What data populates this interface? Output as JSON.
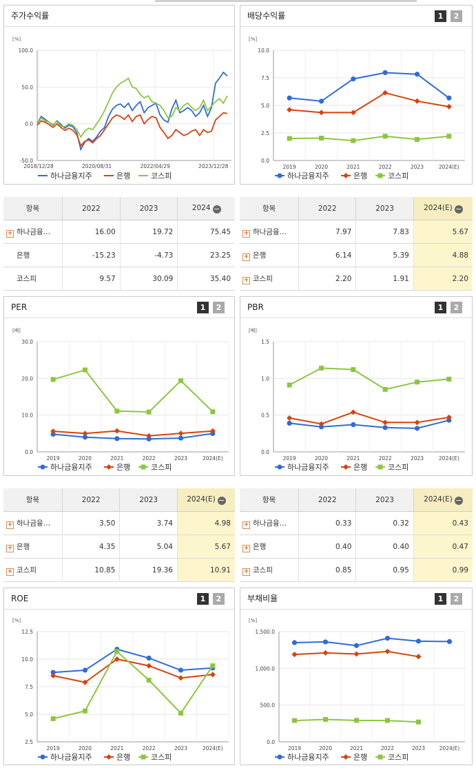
{
  "colors": {
    "hana": "#2e6bd9",
    "bank": "#d9410b",
    "kospi": "#8cc63f"
  },
  "panels": {
    "stock": {
      "title": "주가수익률"
    },
    "div": {
      "title": "배당수익률",
      "pages": [
        "1",
        "2"
      ]
    },
    "per": {
      "title": "PER",
      "pages": [
        "1",
        "2"
      ]
    },
    "pbr": {
      "title": "PBR",
      "pages": [
        "1",
        "2"
      ]
    },
    "roe": {
      "title": "ROE",
      "pages": [
        "1",
        "2"
      ]
    },
    "debt": {
      "title": "부채비율",
      "pages": [
        "1",
        "2"
      ]
    }
  },
  "legend": {
    "hana": "하나금융지주",
    "bank": "은행",
    "kospi": "코스피"
  },
  "tables": {
    "stock": {
      "headers": [
        "항목",
        "2022",
        "2023",
        "2024"
      ],
      "rows": [
        {
          "name": "하나금융…",
          "expand": true,
          "v": [
            "16.00",
            "19.72",
            "75.45"
          ]
        },
        {
          "name": "은행",
          "expand": false,
          "v": [
            "-15.23",
            "-4.73",
            "23.25"
          ]
        },
        {
          "name": "코스피",
          "expand": false,
          "v": [
            "9.57",
            "30.09",
            "35.40"
          ]
        }
      ]
    },
    "div": {
      "headers": [
        "항목",
        "2022",
        "2023",
        "2024(E)"
      ],
      "rows": [
        {
          "name": "하나금융…",
          "expand": true,
          "v": [
            "7.97",
            "7.83",
            "5.67"
          ]
        },
        {
          "name": "은행",
          "expand": true,
          "v": [
            "6.14",
            "5.39",
            "4.88"
          ]
        },
        {
          "name": "코스피",
          "expand": true,
          "v": [
            "2.20",
            "1.91",
            "2.20"
          ]
        }
      ]
    },
    "per": {
      "headers": [
        "항목",
        "2022",
        "2023",
        "2024(E)"
      ],
      "rows": [
        {
          "name": "하나금융…",
          "expand": true,
          "v": [
            "3.50",
            "3.74",
            "4.98"
          ]
        },
        {
          "name": "은행",
          "expand": true,
          "v": [
            "4.35",
            "5.04",
            "5.67"
          ]
        },
        {
          "name": "코스피",
          "expand": true,
          "v": [
            "10.85",
            "19.36",
            "10.91"
          ]
        }
      ]
    },
    "pbr": {
      "headers": [
        "항목",
        "2022",
        "2023",
        "2024(E)"
      ],
      "rows": [
        {
          "name": "하나금융…",
          "expand": true,
          "v": [
            "0.33",
            "0.32",
            "0.43"
          ]
        },
        {
          "name": "은행",
          "expand": true,
          "v": [
            "0.40",
            "0.40",
            "0.47"
          ]
        },
        {
          "name": "코스피",
          "expand": true,
          "v": [
            "0.85",
            "0.95",
            "0.99"
          ]
        }
      ]
    }
  },
  "chart_data": [
    {
      "id": "stock",
      "type": "line",
      "ylabel": "[%]",
      "ylim": [
        -50,
        100
      ],
      "yticks": [
        "-50.0",
        "0.0",
        "50.0",
        "100.0"
      ],
      "xticks": [
        "2018/12/28",
        "2020/08/31",
        "2022/04/29",
        "2023/12/28"
      ],
      "series": [
        {
          "name": "하나금융지주",
          "key": "hana",
          "values": [
            0,
            10,
            6,
            2,
            -2,
            4,
            -1,
            -6,
            -2,
            -4,
            -12,
            -35,
            -25,
            -20,
            -24,
            -18,
            -10,
            -5,
            10,
            20,
            25,
            27,
            22,
            28,
            18,
            25,
            30,
            15,
            22,
            25,
            28,
            12,
            5,
            2,
            20,
            32,
            15,
            18,
            22,
            18,
            10,
            15,
            25,
            10,
            22,
            55,
            62,
            70,
            65
          ]
        },
        {
          "name": "은행",
          "key": "bank",
          "values": [
            -2,
            4,
            2,
            -1,
            -5,
            0,
            -5,
            -9,
            -6,
            -9,
            -15,
            -30,
            -24,
            -22,
            -26,
            -20,
            -16,
            -8,
            0,
            8,
            12,
            10,
            6,
            12,
            3,
            10,
            12,
            0,
            6,
            10,
            8,
            -5,
            -12,
            -20,
            -16,
            -8,
            -12,
            -16,
            -14,
            -10,
            -8,
            -16,
            -8,
            -12,
            -10,
            5,
            10,
            15,
            14
          ]
        },
        {
          "name": "코스피",
          "key": "kospi",
          "values": [
            0,
            8,
            4,
            2,
            -1,
            3,
            -3,
            -4,
            0,
            -2,
            -8,
            -18,
            -10,
            -6,
            -8,
            0,
            8,
            18,
            30,
            42,
            50,
            55,
            58,
            62,
            50,
            48,
            40,
            35,
            38,
            30,
            28,
            25,
            18,
            8,
            10,
            22,
            18,
            25,
            28,
            22,
            18,
            22,
            32,
            18,
            24,
            30,
            34,
            28,
            38
          ]
        }
      ]
    },
    {
      "id": "div",
      "type": "line",
      "ylabel": "[%]",
      "ylim": [
        0,
        10
      ],
      "yticks": [
        "0.0",
        "2.5",
        "5.0",
        "7.5",
        "10.0"
      ],
      "categories": [
        "2019",
        "2020",
        "2021",
        "2022",
        "2023",
        "2024(E)"
      ],
      "series": [
        {
          "name": "하나금융지주",
          "key": "hana",
          "values": [
            5.67,
            5.38,
            7.4,
            7.97,
            7.83,
            5.67
          ]
        },
        {
          "name": "은행",
          "key": "bank",
          "values": [
            4.6,
            4.35,
            4.35,
            6.14,
            5.39,
            4.88
          ]
        },
        {
          "name": "코스피",
          "key": "kospi",
          "values": [
            2.0,
            2.03,
            1.8,
            2.2,
            1.91,
            2.2
          ]
        }
      ]
    },
    {
      "id": "per",
      "type": "line",
      "ylabel": "[배]",
      "ylim": [
        0,
        30
      ],
      "yticks": [
        "0.0",
        "10.0",
        "20.0",
        "30.0"
      ],
      "categories": [
        "2019",
        "2020",
        "2021",
        "2022",
        "2023",
        "2024(E)"
      ],
      "series": [
        {
          "name": "하나금융지주",
          "key": "hana",
          "values": [
            4.8,
            4.0,
            3.6,
            3.5,
            3.74,
            4.98
          ]
        },
        {
          "name": "은행",
          "key": "bank",
          "values": [
            5.6,
            5.0,
            5.7,
            4.35,
            5.04,
            5.67
          ]
        },
        {
          "name": "코스피",
          "key": "kospi",
          "values": [
            19.7,
            22.3,
            11.1,
            10.85,
            19.36,
            10.91
          ]
        }
      ]
    },
    {
      "id": "pbr",
      "type": "line",
      "ylabel": "[배]",
      "ylim": [
        0,
        1.5
      ],
      "yticks": [
        "0.0",
        "0.5",
        "1.0",
        "1.5"
      ],
      "categories": [
        "2019",
        "2020",
        "2021",
        "2022",
        "2023",
        "2024(E)"
      ],
      "series": [
        {
          "name": "하나금융지주",
          "key": "hana",
          "values": [
            0.39,
            0.34,
            0.37,
            0.33,
            0.32,
            0.43
          ]
        },
        {
          "name": "은행",
          "key": "bank",
          "values": [
            0.46,
            0.38,
            0.54,
            0.4,
            0.4,
            0.47
          ]
        },
        {
          "name": "코스피",
          "key": "kospi",
          "values": [
            0.91,
            1.14,
            1.12,
            0.85,
            0.95,
            0.99
          ]
        }
      ]
    },
    {
      "id": "roe",
      "type": "line",
      "ylabel": "[%]",
      "ylim": [
        2.5,
        12.5
      ],
      "yticks": [
        "2.5",
        "5.0",
        "7.5",
        "10.0",
        "12.5"
      ],
      "categories": [
        "2019",
        "2020",
        "2021",
        "2022",
        "2023",
        "2024(E)"
      ],
      "series": [
        {
          "name": "하나금융지주",
          "key": "hana",
          "values": [
            8.8,
            9.0,
            10.9,
            10.1,
            9.0,
            9.2
          ]
        },
        {
          "name": "은행",
          "key": "bank",
          "values": [
            8.5,
            7.9,
            10.0,
            9.4,
            8.3,
            8.6
          ]
        },
        {
          "name": "코스피",
          "key": "kospi",
          "values": [
            4.6,
            5.3,
            10.7,
            8.1,
            5.1,
            9.4
          ]
        }
      ]
    },
    {
      "id": "debt",
      "type": "line",
      "ylabel": "[%]",
      "ylim": [
        0,
        1500
      ],
      "yticks": [
        "0.0",
        "500.0",
        "1,000.0",
        "1,500.0"
      ],
      "categories": [
        "2019",
        "2020",
        "2021",
        "2022",
        "2023",
        "2024(E)"
      ],
      "series": [
        {
          "name": "하나금융지주",
          "key": "hana",
          "values": [
            1350,
            1360,
            1310,
            1410,
            1370,
            1365
          ]
        },
        {
          "name": "은행",
          "key": "bank",
          "values": [
            1190,
            1210,
            1195,
            1230,
            1160,
            null
          ]
        },
        {
          "name": "코스피",
          "key": "kospi",
          "values": [
            290,
            305,
            292,
            290,
            270,
            null
          ]
        }
      ]
    }
  ]
}
